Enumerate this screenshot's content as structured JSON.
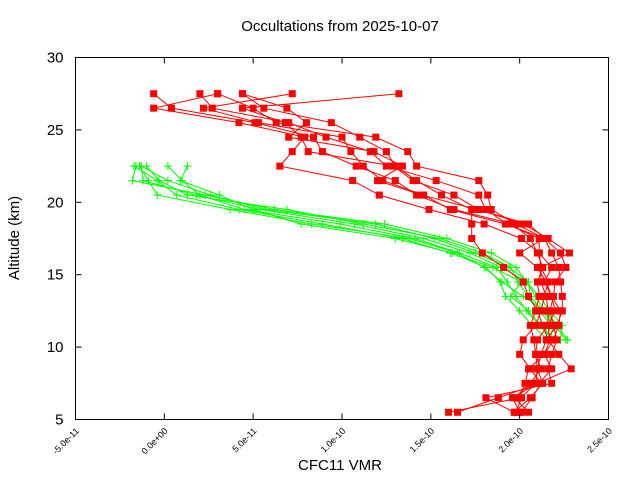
{
  "chart_data": {
    "type": "line",
    "title": "Occultations from 2025-10-07",
    "xlabel": "CFC11 VMR",
    "ylabel": "Altitude (km)",
    "xlim": [
      -5e-11,
      2.5e-10
    ],
    "ylim": [
      5,
      30
    ],
    "x_ticks": [
      -5e-11,
      0,
      5e-11,
      1e-10,
      1.5e-10,
      2e-10,
      2.5e-10
    ],
    "x_tick_labels": [
      "-5.0e-11",
      "0.0e+00",
      "5.0e-11",
      "1.0e-10",
      "1.5e-10",
      "2.0e-10",
      "2.5e-10"
    ],
    "y_ticks": [
      5,
      10,
      15,
      20,
      25,
      30
    ],
    "y_tick_labels": [
      "5",
      "10",
      "15",
      "20",
      "25",
      "30"
    ],
    "x_unit_scale": 1e-11,
    "grid": false,
    "colors": {
      "red_series": "#ff0000",
      "green_series": "#00ff00",
      "axis": "#000000"
    },
    "red_series": {
      "marker": "square",
      "altitudes": [
        27.5,
        26.5,
        25.5,
        24.5,
        23.5,
        22.5,
        21.5,
        20.5,
        19.5,
        18.5,
        17.5,
        16.5,
        15.5,
        14.5,
        13.5,
        12.5,
        11.5,
        10.5,
        9.5,
        8.5,
        7.5,
        6.5,
        5.5
      ],
      "profiles": [
        [
          -0.6,
          0.4,
          5.1,
          8.4,
          8.9,
          10.8,
          13.0,
          14.2,
          16.3,
          19.6,
          20.6,
          21.0,
          21.3,
          21.0,
          21.1,
          20.9,
          20.6,
          20.8,
          20.9,
          21.0,
          21.3,
          20.6,
          19.7
        ],
        [
          2.0,
          2.7,
          7.0,
          9.1,
          11.6,
          12.5,
          15.3,
          17.7,
          18.1,
          19.3,
          21.1,
          21.1,
          21.2,
          21.2,
          21.5,
          21.6,
          21.6,
          21.7,
          21.4,
          21.8,
          21.1,
          18.8,
          16.5
        ],
        [
          3.0,
          -0.6,
          4.2,
          7.9,
          7.2,
          6.5,
          10.6,
          12.1,
          14.9,
          18.0,
          20.1,
          21.1,
          21.8,
          21.4,
          21.8,
          22.3,
          22.2,
          21.9,
          21.4,
          20.5,
          20.3,
          20.0,
          16.0
        ],
        [
          7.2,
          2.2,
          5.3,
          10.0,
          10.5,
          11.2,
          12.3,
          14.6,
          16.1,
          19.2,
          21.4,
          22.3,
          22.6,
          22.0,
          21.9,
          21.7,
          21.9,
          22.1,
          21.8,
          21.6,
          21.8,
          18.1,
          19.7
        ],
        [
          13.2,
          4.4,
          6.8,
          7.7,
          8.1,
          12.9,
          14.0,
          16.3,
          17.7,
          20.2,
          21.6,
          22.8,
          21.2,
          21.6,
          21.4,
          21.2,
          20.9,
          20.2,
          20.0,
          20.6,
          21.2,
          20.7,
          20.1
        ],
        [
          3.0,
          5.0,
          6.3,
          11.9,
          13.7,
          14.2,
          17.7,
          18.2,
          18.4,
          19.8,
          21.4,
          20.0,
          21.0,
          21.5,
          21.8,
          22.0,
          21.6,
          21.0,
          20.9,
          21.2,
          20.6,
          19.7,
          20.5
        ],
        [
          4.4,
          5.6,
          9.4,
          11.0,
          12.5,
          13.0,
          14.2,
          15.6,
          17.3,
          17.3,
          17.3,
          17.9,
          19.1,
          20.2,
          20.5,
          21.0,
          21.3,
          21.6,
          22.2,
          22.9,
          21.0,
          19.6,
          20.0
        ],
        [
          4.4,
          6.9,
          8.0,
          7.0,
          11.8,
          13.4,
          12.0,
          14.5,
          17.6,
          20.5,
          21.4,
          21.8,
          22.2,
          22.3,
          22.4,
          22.4,
          22.1,
          21.5,
          21.2,
          21.0,
          20.9,
          20.1,
          19.8
        ]
      ]
    },
    "green_series": {
      "marker": "plus",
      "altitudes": [
        22.5,
        21.5,
        20.5,
        19.5,
        18.5,
        17.5,
        16.5,
        15.5,
        14.5,
        13.5,
        12.5,
        11.5,
        10.5
      ],
      "profiles": [
        [
          -1.6,
          -1.8,
          2.3,
          6.2,
          12.4,
          15.9,
          18.4,
          19.8,
          20.4,
          21.1,
          21.7,
          22.4,
          22.3
        ],
        [
          -1.3,
          -1.2,
          1.8,
          5.4,
          10.7,
          14.6,
          17.2,
          19.0,
          20.4,
          20.9,
          21.4,
          22.0,
          22.6
        ],
        [
          -1.0,
          -0.3,
          1.3,
          6.9,
          11.2,
          15.5,
          17.9,
          19.5,
          19.9,
          20.5,
          21.1,
          21.8,
          21.4
        ],
        [
          0.2,
          1.0,
          2.0,
          4.5,
          9.9,
          14.1,
          16.6,
          18.7,
          19.3,
          19.8,
          20.4,
          21.1,
          21.9
        ],
        [
          1.3,
          0.9,
          3.1,
          5.0,
          7.7,
          13.0,
          16.2,
          18.1,
          18.9,
          19.2,
          20.0,
          20.7,
          21.6
        ],
        [
          -1.4,
          -0.9,
          -0.4,
          3.7,
          8.3,
          13.8,
          16.5,
          18.0,
          19.0,
          20.2,
          21.5,
          22.1,
          22.7
        ],
        [
          -1.3,
          0.2,
          2.6,
          5.7,
          11.9,
          15.2,
          17.5,
          19.4,
          20.5,
          20.6,
          21.3,
          21.9,
          21.7
        ],
        [
          -1.7,
          -0.4,
          0.7,
          4.2,
          8.9,
          13.4,
          16.1,
          18.5,
          20.1,
          19.5,
          20.5,
          21.2,
          22.0
        ]
      ]
    }
  }
}
